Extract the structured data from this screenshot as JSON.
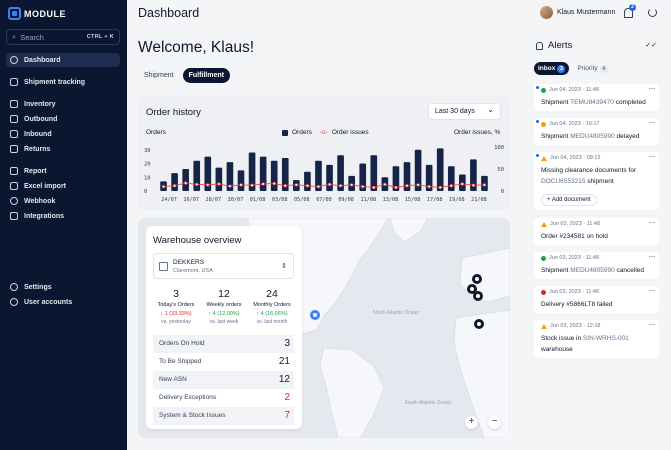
{
  "app": {
    "name": "MODULE"
  },
  "sidebar": {
    "search_label": "Search",
    "search_shortcut": "CTRL + K",
    "items": [
      {
        "label": "Dashboard",
        "active": true
      },
      {
        "label": "Shipment tracking"
      },
      {
        "label": "Inventory"
      },
      {
        "label": "Outbound"
      },
      {
        "label": "Inbound"
      },
      {
        "label": "Returns"
      },
      {
        "label": "Report"
      },
      {
        "label": "Excel import"
      },
      {
        "label": "Webhook"
      },
      {
        "label": "Integrations"
      },
      {
        "label": "Settings"
      },
      {
        "label": "User accounts"
      }
    ]
  },
  "header": {
    "title": "Dashboard",
    "user_name": "Klaus Mustermann",
    "notification_count": "2"
  },
  "main": {
    "welcome": "Welcome, Klaus!",
    "tabs": [
      {
        "label": "Shipment"
      },
      {
        "label": "Fulfillment",
        "active": true
      }
    ]
  },
  "order_history": {
    "title": "Order history",
    "range": "Last 30 days",
    "left_label": "Orders",
    "right_label": "Order issues, %",
    "legend_orders": "Orders",
    "legend_issues": "Order issues"
  },
  "chart_data": {
    "type": "bar",
    "x": [
      "24/07",
      "25/07",
      "26/07",
      "27/07",
      "28/07",
      "29/07",
      "30/07",
      "31/07",
      "01/08",
      "02/08",
      "03/08",
      "04/08",
      "05/08",
      "06/08",
      "07/08",
      "08/08",
      "09/08",
      "10/08",
      "11/08",
      "12/08",
      "13/08",
      "14/08",
      "15/08",
      "16/08",
      "17/08",
      "18/08",
      "19/08",
      "20/08",
      "21/08",
      "22/08"
    ],
    "x_tick_labels": [
      "24/07",
      "26/07",
      "28/07",
      "30/07",
      "01/08",
      "03/08",
      "05/08",
      "07/08",
      "09/08",
      "11/08",
      "13/08",
      "15/08",
      "17/08",
      "19/08",
      "21/08"
    ],
    "series": [
      {
        "name": "Orders",
        "type": "bar",
        "axis": "left",
        "values": [
          7,
          13,
          16,
          22,
          25,
          17,
          21,
          15,
          28,
          25,
          22,
          24,
          8,
          14,
          22,
          19,
          26,
          11,
          20,
          26,
          10,
          18,
          21,
          30,
          19,
          31,
          18,
          12,
          23,
          11
        ]
      },
      {
        "name": "Order issues",
        "type": "line",
        "axis": "right",
        "values": [
          10,
          12,
          18,
          15,
          14,
          16,
          11,
          14,
          13,
          16,
          17,
          12,
          14,
          12,
          10,
          15,
          12,
          14,
          10,
          8,
          15,
          8,
          12,
          14,
          10,
          8,
          12,
          16,
          13,
          14
        ]
      }
    ],
    "y_left_ticks": [
      0,
      10,
      20,
      30
    ],
    "y_right_ticks": [
      0,
      50,
      100
    ],
    "y_left_range": [
      0,
      32
    ],
    "y_right_range": [
      0,
      100
    ],
    "colors": {
      "bars": "#162447",
      "line": "#ef4444"
    }
  },
  "warehouse": {
    "title": "Warehouse overview",
    "name": "DEKKERS",
    "location": "Claremont, USA",
    "stats": [
      {
        "value": "3",
        "label": "Today's Orders",
        "delta": "↓ 1 (33,33%)",
        "trend": "down",
        "compare": "vs. yesterday"
      },
      {
        "value": "12",
        "label": "Weekly orders",
        "delta": "↑ 4 (12,00%)",
        "trend": "up",
        "compare": "vs. last week"
      },
      {
        "value": "24",
        "label": "Monthly Orders",
        "delta": "↑ 4 (16,66%)",
        "trend": "up",
        "compare": "vs. last month"
      }
    ],
    "rows": [
      {
        "label": "Orders On Hold",
        "value": "3",
        "alert": false
      },
      {
        "label": "To Be Shipped",
        "value": "21",
        "alert": false
      },
      {
        "label": "New ASN",
        "value": "12",
        "alert": false
      },
      {
        "label": "Delivery Exceptions",
        "value": "2",
        "alert": true
      },
      {
        "label": "System & Stock Issues",
        "value": "7",
        "alert": true
      }
    ]
  },
  "map": {
    "labels": [
      "North Atlantic Ocean",
      "South Atlantic Ocean"
    ],
    "zoom_in": "+",
    "zoom_out": "−"
  },
  "alerts": {
    "title": "Alerts",
    "tabs": [
      {
        "label": "Inbox",
        "count": "3",
        "active": true
      },
      {
        "label": "Priority",
        "count": "4"
      }
    ],
    "items": [
      {
        "time": "Jun 04, 2023 · 11:48",
        "status": "ok",
        "unread": true,
        "text": "Shipment ",
        "code": "TEMU8439470",
        "tail": " completed"
      },
      {
        "time": "Jun 04, 2023 · 10:17",
        "status": "warn",
        "unread": true,
        "text": "Shipment ",
        "code": "MEDU4805990",
        "tail": " delayed"
      },
      {
        "time": "Jun 04, 2023 · 09:12",
        "status": "tri",
        "unread": true,
        "text": "Missing clearance documents for ",
        "code": "DOCU6553215",
        "tail": " shipment",
        "action": "+ Add document"
      },
      {
        "time": "Jun 03, 2023 · 11:48",
        "status": "tri",
        "text": "Order ",
        "code": "",
        "tail": "#234581 on hold"
      },
      {
        "time": "Jun 03, 2023 · 11:48",
        "status": "ok",
        "text": "Shipment ",
        "code": "MEDU4805990",
        "tail": " cancelled"
      },
      {
        "time": "Jun 03, 2023 · 11:48",
        "status": "err",
        "text": "Delivery ",
        "code": "",
        "tail": "#5866LT8 failed"
      },
      {
        "time": "Jun 03, 2023 · 12:18",
        "status": "tri",
        "text": "Stock issue in ",
        "code": "SIN-WRHS-001",
        "tail": " warehouse"
      }
    ]
  }
}
